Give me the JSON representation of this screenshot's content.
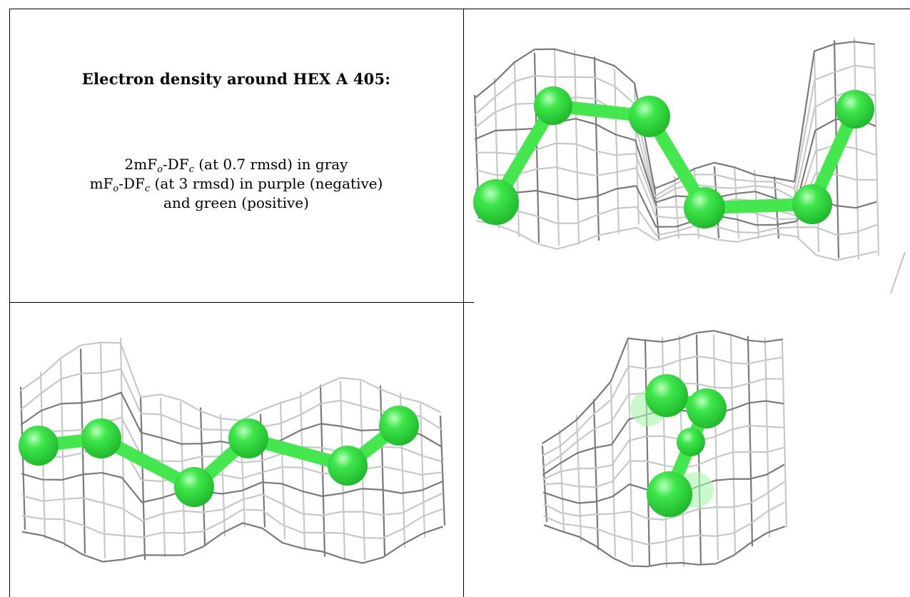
{
  "caption": {
    "title": "Electron density around HEX A 405:",
    "line1": {
      "pre": "2mF",
      "sub1": "o",
      "mid": "-DF",
      "sub2": "c",
      "post": " (at 0.7 rmsd) in gray"
    },
    "line2": {
      "pre": "mF",
      "sub1": "o",
      "mid": "-DF",
      "sub2": "c",
      "post": " (at 3 rmsd) in purple (negative)"
    },
    "line3": "and green (positive)"
  },
  "colors": {
    "atom": "#3ee64a",
    "atom_dark": "#1fb82c",
    "bond": "#44e84e",
    "mesh_light": "#c8c8c8",
    "mesh_dark": "#7a7a7a",
    "grid": "#000000"
  },
  "views": [
    {
      "name": "view-top-right"
    },
    {
      "name": "view-bottom-left"
    },
    {
      "name": "view-bottom-right"
    }
  ]
}
